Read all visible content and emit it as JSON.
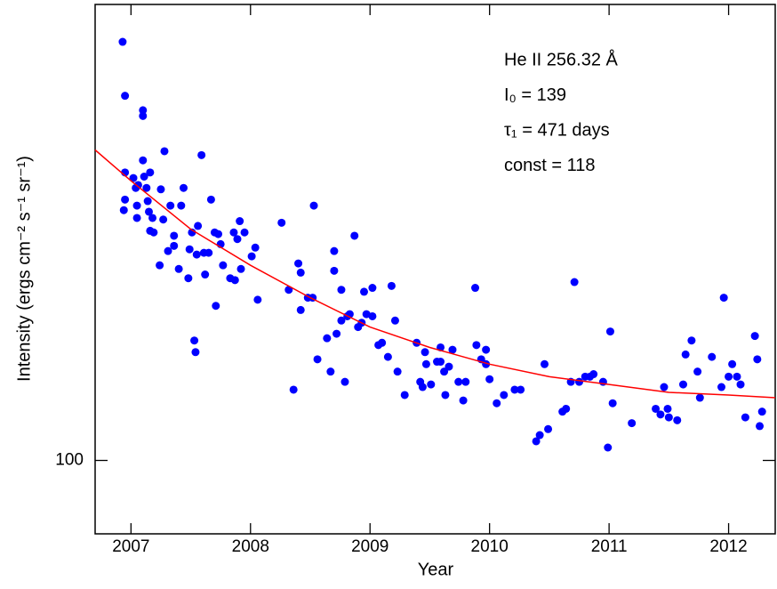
{
  "chart_data": {
    "type": "scatter",
    "x_label": "Year",
    "y_label": "Intensity (ergs cm⁻² s⁻¹ sr⁻¹)",
    "annotations": [
      "He II 256.32 Å",
      "I₀ = 139",
      "τ₁ = 471 days",
      "const = 118"
    ],
    "xlim": [
      2006.7,
      2012.39
    ],
    "xticks": [
      2007,
      2008,
      2009,
      2010,
      2011,
      2012
    ],
    "ylim": [
      80,
      400
    ],
    "yticks": [
      100
    ],
    "log_y": true,
    "series": [
      {
        "type": "scatter",
        "color": "#0000ff",
        "x": [
          2006.93,
          2006.95,
          2007.1,
          2007.1,
          2006.95,
          2006.95,
          2006.94,
          2007.02,
          2007.06,
          2007.04,
          2007.05,
          2007.05,
          2007.1,
          2007.11,
          2007.13,
          2007.14,
          2007.15,
          2007.16,
          2007.18,
          2007.16,
          2007.19,
          2007.24,
          2007.28,
          2007.27,
          2007.25,
          2007.31,
          2007.33,
          2007.36,
          2007.36,
          2007.4,
          2007.42,
          2007.44,
          2007.48,
          2007.49,
          2007.51,
          2007.53,
          2007.54,
          2007.55,
          2007.56,
          2007.59,
          2007.61,
          2007.62,
          2007.65,
          2007.67,
          2007.7,
          2007.71,
          2007.73,
          2007.75,
          2007.77,
          2007.83,
          2007.86,
          2007.87,
          2007.89,
          2007.91,
          2007.92,
          2007.95,
          2008.01,
          2008.04,
          2008.06,
          2008.26,
          2008.32,
          2008.36,
          2008.4,
          2008.42,
          2008.42,
          2008.48,
          2008.52,
          2008.53,
          2008.56,
          2008.64,
          2008.67,
          2008.7,
          2008.7,
          2008.72,
          2008.76,
          2008.76,
          2008.79,
          2008.81,
          2008.83,
          2008.87,
          2008.9,
          2008.93,
          2008.95,
          2008.97,
          2009.02,
          2009.02,
          2009.07,
          2009.1,
          2009.15,
          2009.18,
          2009.21,
          2009.23,
          2009.29,
          2009.39,
          2009.42,
          2009.44,
          2009.46,
          2009.47,
          2009.51,
          2009.56,
          2009.59,
          2009.59,
          2009.62,
          2009.63,
          2009.66,
          2009.69,
          2009.74,
          2009.78,
          2009.8,
          2009.88,
          2009.89,
          2009.93,
          2009.97,
          2009.97,
          2010.0,
          2010.06,
          2010.12,
          2010.21,
          2010.26,
          2010.39,
          2010.42,
          2010.46,
          2010.49,
          2010.61,
          2010.64,
          2010.68,
          2010.71,
          2010.75,
          2010.8,
          2010.84,
          2010.87,
          2010.95,
          2010.99,
          2011.01,
          2011.03,
          2011.19,
          2011.39,
          2011.43,
          2011.46,
          2011.49,
          2011.5,
          2011.57,
          2011.62,
          2011.64,
          2011.69,
          2011.74,
          2011.76,
          2011.86,
          2011.94,
          2011.96,
          2012.0,
          2012.03,
          2012.07,
          2012.1,
          2012.14,
          2012.22,
          2012.24,
          2012.26,
          2012.28
        ],
        "values": [
          357,
          303,
          290,
          285,
          240,
          221,
          214,
          236,
          231,
          229,
          217,
          209,
          249,
          237,
          229,
          220,
          213,
          240,
          209,
          201,
          200,
          181,
          256,
          208,
          228,
          189,
          217,
          198,
          192,
          179,
          217,
          229,
          174,
          190,
          200,
          144,
          139,
          187,
          204,
          253,
          188,
          176,
          188,
          221,
          200,
          160,
          199,
          193,
          181,
          174,
          200,
          173,
          196,
          207,
          179,
          200,
          186,
          191,
          163,
          206,
          168,
          124,
          182,
          177,
          158,
          164,
          164,
          217,
          136,
          145,
          131,
          189,
          178,
          147,
          168,
          153,
          127,
          155,
          156,
          198,
          150,
          152,
          167,
          156,
          169,
          155,
          142,
          143,
          137,
          170,
          153,
          131,
          122,
          143,
          127,
          125,
          139,
          134,
          126,
          135,
          141,
          135,
          131,
          122,
          133,
          140,
          127,
          120,
          127,
          169,
          142,
          136,
          134,
          140,
          128,
          119,
          122,
          124,
          124,
          106,
          108,
          134,
          110,
          116,
          117,
          127,
          172,
          127,
          129,
          129,
          130,
          127,
          104,
          148,
          119,
          112,
          117,
          115,
          125,
          117,
          114,
          113,
          126,
          138,
          144,
          131,
          121,
          137,
          125,
          164,
          129,
          134,
          129,
          126,
          114,
          146,
          136,
          111,
          116
        ]
      },
      {
        "type": "line",
        "color": "#ff0000",
        "x": [
          2006.7,
          2007.0,
          2007.5,
          2008.0,
          2008.5,
          2009.0,
          2009.5,
          2010.0,
          2010.5,
          2011.0,
          2011.5,
          2012.0,
          2012.39
        ],
        "values": [
          257,
          234,
          202,
          181,
          164,
          150,
          141,
          134,
          129,
          126,
          123,
          122,
          121
        ]
      }
    ]
  }
}
